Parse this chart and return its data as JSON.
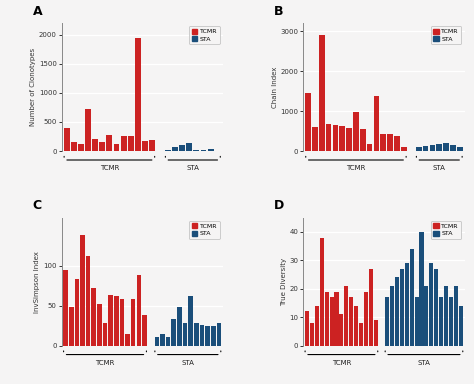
{
  "panel_A": {
    "title": "A",
    "ylabel": "Number of Clonotypes",
    "tcmr_values": [
      400,
      150,
      120,
      720,
      200,
      150,
      280,
      120,
      250,
      250,
      1950,
      170,
      190
    ],
    "sta_values": [
      25,
      75,
      110,
      140,
      25,
      15,
      35,
      8
    ],
    "ylim": [
      0,
      2200
    ],
    "yticks": [
      0,
      500,
      1000,
      1500,
      2000
    ]
  },
  "panel_B": {
    "title": "B",
    "ylabel": "Chain Index",
    "tcmr_values": [
      1450,
      600,
      2900,
      680,
      650,
      620,
      580,
      980,
      560,
      180,
      1380,
      420,
      420,
      380,
      90
    ],
    "sta_values": [
      95,
      115,
      140,
      170,
      190,
      140,
      95
    ],
    "ylim": [
      0,
      3200
    ],
    "yticks": [
      0,
      1000,
      2000,
      3000
    ]
  },
  "panel_C": {
    "title": "C",
    "ylabel": "InvSimpson Index",
    "tcmr_values": [
      95,
      48,
      83,
      138,
      112,
      72,
      52,
      28,
      63,
      62,
      58,
      14,
      58,
      88,
      38
    ],
    "sta_values": [
      11,
      14,
      11,
      33,
      48,
      28,
      62,
      28,
      26,
      24,
      24,
      28
    ],
    "ylim": [
      0,
      160
    ],
    "yticks": [
      0,
      50,
      100
    ]
  },
  "panel_D": {
    "title": "D",
    "ylabel": "True Diversity",
    "tcmr_values": [
      12,
      8,
      14,
      38,
      19,
      17,
      19,
      11,
      21,
      17,
      14,
      8,
      19,
      27,
      9
    ],
    "sta_values": [
      17,
      21,
      24,
      27,
      29,
      34,
      17,
      40,
      21,
      29,
      27,
      17,
      21,
      17,
      21,
      14
    ],
    "ylim": [
      0,
      45
    ],
    "yticks": [
      0,
      10,
      20,
      30,
      40
    ]
  },
  "tcmr_color": "#cc2222",
  "sta_color": "#1a4e7a",
  "bg_color": "#f5f4f4",
  "legend_tcmr": "TCMR",
  "legend_sta": "STA",
  "tcmr_label": "TCMR",
  "sta_label": "STA",
  "bar_gap": 1.2,
  "bar_width": 0.82
}
